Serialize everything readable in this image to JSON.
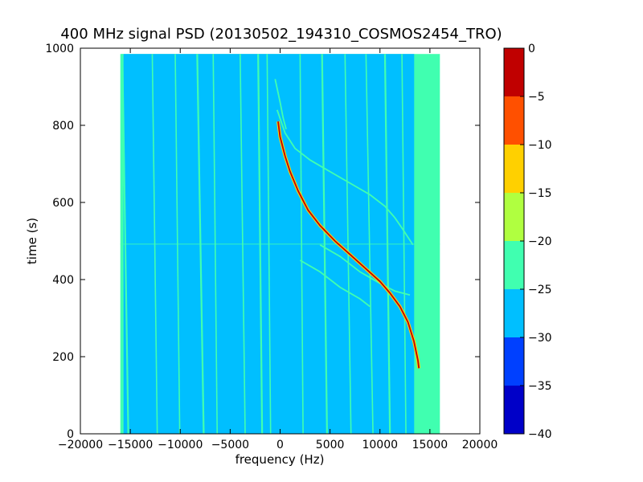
{
  "chart_data": {
    "type": "heatmap",
    "title": "400 MHz signal PSD (20130502_194310_COSMOS2454_TRO)",
    "xlabel": "frequency (Hz)",
    "ylabel": "time (s)",
    "xlim": [
      -20000,
      20000
    ],
    "ylim": [
      0,
      1000
    ],
    "x_ticks": [
      -20000,
      -15000,
      -10000,
      -5000,
      0,
      5000,
      10000,
      15000,
      20000
    ],
    "x_tick_labels": [
      "−20000",
      "−15000",
      "−10000",
      "−5000",
      "0",
      "5000",
      "10000",
      "15000",
      "20000"
    ],
    "y_ticks": [
      0,
      200,
      400,
      600,
      800,
      1000
    ],
    "y_tick_labels": [
      "0",
      "200",
      "400",
      "600",
      "800",
      "1000"
    ],
    "data_extent": {
      "x": [
        -16000,
        16000
      ],
      "y": [
        0,
        985
      ]
    },
    "colorbar": {
      "levels": [
        -40,
        -35,
        -30,
        -25,
        -20,
        -15,
        -10,
        -5,
        0
      ],
      "tick_labels": [
        "−40",
        "−35",
        "−30",
        "−25",
        "−20",
        "−15",
        "−10",
        "−5",
        "0"
      ],
      "colors": [
        "#0000c8",
        "#0040ff",
        "#00bfff",
        "#40ffb0",
        "#b0ff40",
        "#ffd000",
        "#ff5000",
        "#c00000"
      ]
    },
    "background_level_db": -27,
    "band_edge_level_db": -22,
    "vertical_spur_lines": [
      {
        "x": -15800,
        "drift": -600
      },
      {
        "x": -12800,
        "drift": -500
      },
      {
        "x": -10500,
        "drift": -450
      },
      {
        "x": -8300,
        "drift": -650
      },
      {
        "x": -6700,
        "drift": -400
      },
      {
        "x": -4000,
        "drift": -500
      },
      {
        "x": -2200,
        "drift": -400
      },
      {
        "x": -1300,
        "drift": -350
      },
      {
        "x": 2000,
        "drift": -300
      },
      {
        "x": 4200,
        "drift": -500
      },
      {
        "x": 6500,
        "drift": -600
      },
      {
        "x": 8600,
        "drift": -700
      },
      {
        "x": 10500,
        "drift": -500
      },
      {
        "x": 12200,
        "drift": -400
      }
    ],
    "main_signal": {
      "level_db": -3,
      "points": [
        [
          -200,
          810
        ],
        [
          0,
          770
        ],
        [
          500,
          720
        ],
        [
          1000,
          680
        ],
        [
          1800,
          630
        ],
        [
          2800,
          580
        ],
        [
          4000,
          540
        ],
        [
          5500,
          500
        ],
        [
          7000,
          465
        ],
        [
          8500,
          430
        ],
        [
          10000,
          395
        ],
        [
          11000,
          365
        ],
        [
          12000,
          330
        ],
        [
          12800,
          290
        ],
        [
          13400,
          240
        ],
        [
          13800,
          190
        ],
        [
          13900,
          170
        ]
      ]
    },
    "secondary_traces": [
      {
        "level_db": -22,
        "points": [
          [
            -300,
            840
          ],
          [
            500,
            780
          ],
          [
            1500,
            740
          ],
          [
            3000,
            710
          ],
          [
            5000,
            680
          ],
          [
            7000,
            650
          ],
          [
            9000,
            620
          ],
          [
            10500,
            590
          ],
          [
            11500,
            560
          ],
          [
            12300,
            530
          ],
          [
            12800,
            510
          ],
          [
            13300,
            490
          ]
        ]
      },
      {
        "level_db": -22,
        "points": [
          [
            -500,
            920
          ],
          [
            0,
            860
          ],
          [
            300,
            820
          ],
          [
            600,
            790
          ]
        ]
      },
      {
        "level_db": -22,
        "points": [
          [
            4000,
            490
          ],
          [
            6000,
            460
          ],
          [
            8000,
            420
          ],
          [
            10000,
            390
          ],
          [
            11500,
            370
          ],
          [
            13000,
            360
          ]
        ]
      },
      {
        "level_db": -22,
        "points": [
          [
            2000,
            450
          ],
          [
            4000,
            420
          ],
          [
            6000,
            380
          ],
          [
            8000,
            350
          ],
          [
            9000,
            330
          ]
        ]
      }
    ],
    "horizontal_artifact": {
      "y": 492,
      "x_range": [
        -16000,
        16000
      ],
      "level_db": -22
    }
  }
}
